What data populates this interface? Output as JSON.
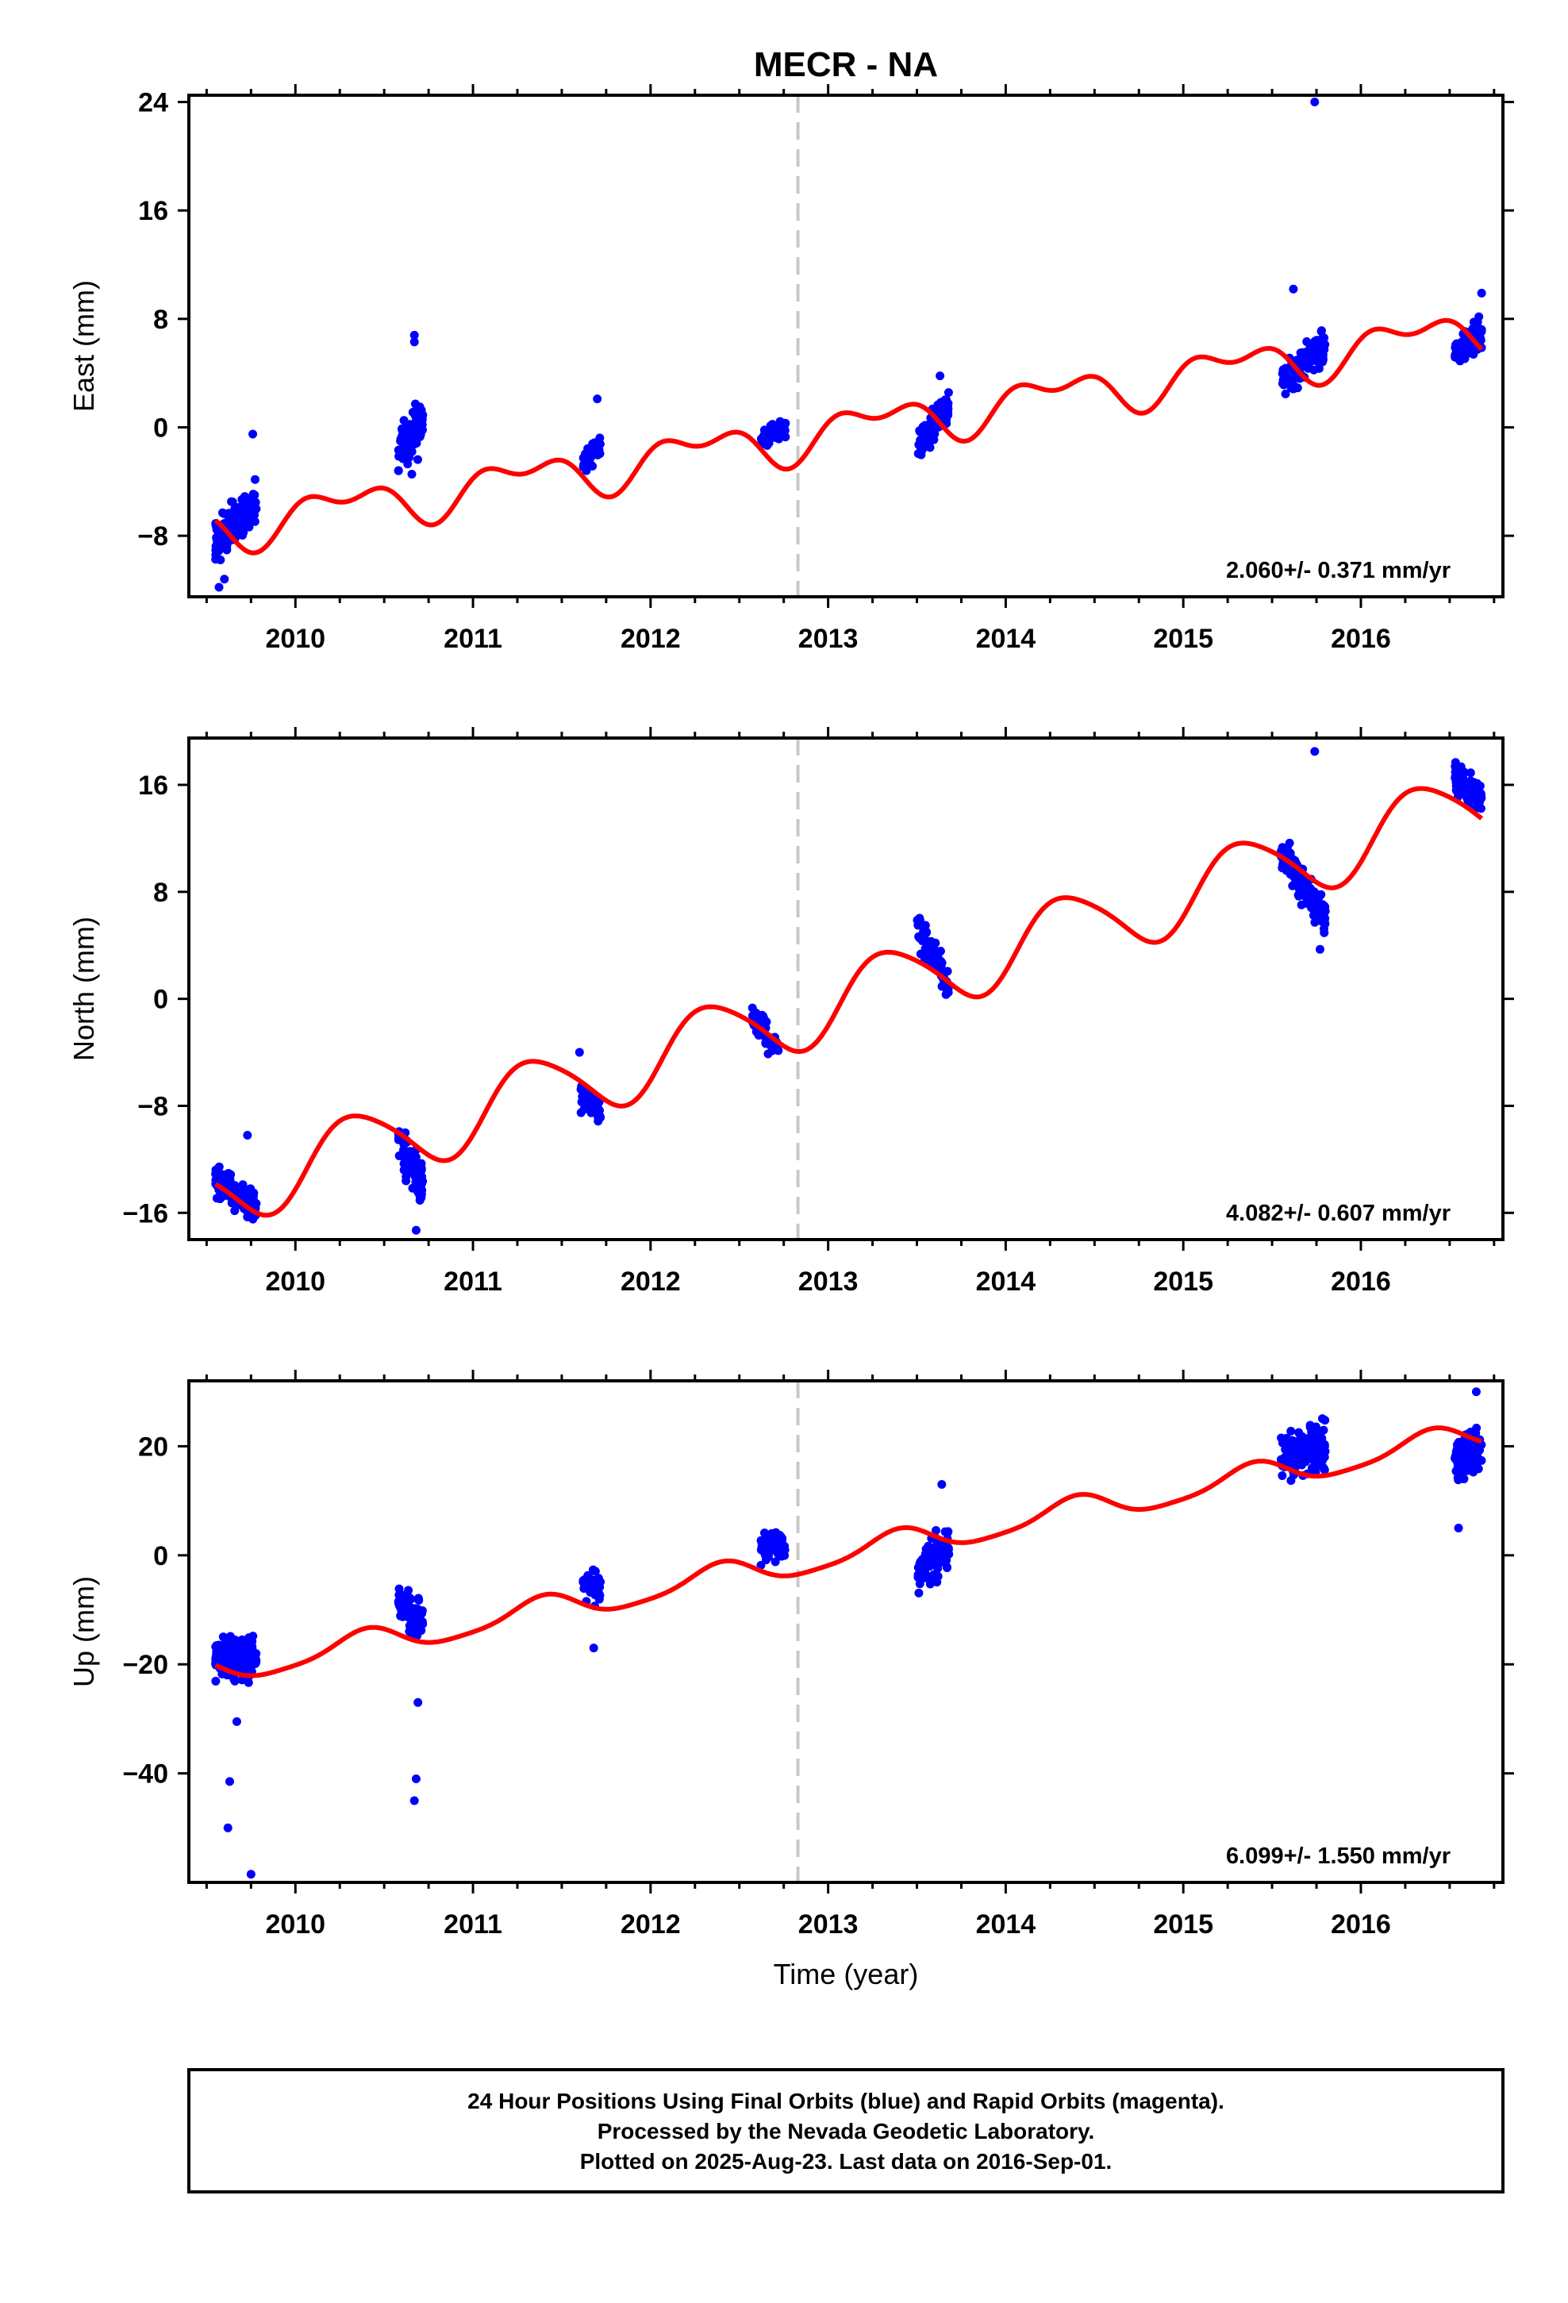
{
  "title": "MECR - NA",
  "chart_data": [
    {
      "type": "scatter",
      "ylabel": "East (mm)",
      "xlabel": "",
      "xlim": [
        2009.4,
        2016.8
      ],
      "ylim": [
        -12.5,
        24.5
      ],
      "yticks": [
        24,
        16,
        8,
        0,
        -8
      ],
      "ytick_labels": [
        "24",
        "16",
        "8",
        "0",
        "-8"
      ],
      "xticks": [
        2010,
        2011,
        2012,
        2013,
        2014,
        2015,
        2016
      ],
      "xtick_labels": [
        "2010",
        "2011",
        "2012",
        "2013",
        "2014",
        "2015",
        "2016"
      ],
      "rate_label": "2.060+/- 0.371 mm/yr",
      "event_line_x": 2012.83,
      "series": [
        {
          "kind": "points",
          "color": "#0000ff",
          "clusters": [
            {
              "x_start": 2009.55,
              "x_end": 2009.78,
              "y_start": -8.5,
              "y_end": -5.5,
              "spread": 1.6,
              "n": 150
            },
            {
              "x_start": 2010.58,
              "x_end": 2010.72,
              "y_start": -1.5,
              "y_end": 0.5,
              "spread": 2.0,
              "n": 75
            },
            {
              "x_start": 2011.62,
              "x_end": 2011.72,
              "y_start": -2.5,
              "y_end": -1.5,
              "spread": 1.0,
              "n": 45
            },
            {
              "x_start": 2012.62,
              "x_end": 2012.76,
              "y_start": -0.8,
              "y_end": 0.0,
              "spread": 0.8,
              "n": 55
            },
            {
              "x_start": 2013.5,
              "x_end": 2013.68,
              "y_start": -1.5,
              "y_end": 1.5,
              "spread": 1.2,
              "n": 85
            },
            {
              "x_start": 2015.55,
              "x_end": 2015.8,
              "y_start": 3.5,
              "y_end": 6.0,
              "spread": 1.2,
              "n": 150
            },
            {
              "x_start": 2016.53,
              "x_end": 2016.68,
              "y_start": 5.5,
              "y_end": 7.0,
              "spread": 1.0,
              "n": 100
            }
          ],
          "outliers": [
            [
              2015.74,
              24.0
            ],
            [
              2015.62,
              10.2
            ],
            [
              2010.67,
              6.8
            ],
            [
              2010.67,
              6.3
            ],
            [
              2009.57,
              -11.8
            ],
            [
              2009.6,
              -11.2
            ],
            [
              2009.76,
              -0.5
            ],
            [
              2011.7,
              2.1
            ],
            [
              2013.63,
              3.8
            ],
            [
              2016.68,
              9.9
            ]
          ]
        },
        {
          "kind": "fit",
          "color": "#ff0000",
          "ref_year": 2012.83,
          "offset": -0.7,
          "rate": 2.06,
          "annual_sin": 1.35,
          "annual_cos": -0.15,
          "semiannual_sin": 0.3,
          "semiannual_cos": 0.85
        }
      ]
    },
    {
      "type": "scatter",
      "ylabel": "North (mm)",
      "xlabel": "",
      "xlim": [
        2009.4,
        2016.8
      ],
      "ylim": [
        -18,
        19.5
      ],
      "yticks": [
        16,
        8,
        0,
        -8,
        -16
      ],
      "ytick_labels": [
        "16",
        "8",
        "0",
        "-8",
        "-16"
      ],
      "xticks": [
        2010,
        2011,
        2012,
        2013,
        2014,
        2015,
        2016
      ],
      "xtick_labels": [
        "2010",
        "2011",
        "2012",
        "2013",
        "2014",
        "2015",
        "2016"
      ],
      "rate_label": "4.082+/- 0.607 mm/yr",
      "event_line_x": 2012.83,
      "series": [
        {
          "kind": "points",
          "color": "#0000ff",
          "clusters": [
            {
              "x_start": 2009.55,
              "x_end": 2009.78,
              "y_start": -13.5,
              "y_end": -15.5,
              "spread": 1.2,
              "n": 150
            },
            {
              "x_start": 2010.58,
              "x_end": 2010.72,
              "y_start": -10.5,
              "y_end": -14.0,
              "spread": 1.6,
              "n": 75
            },
            {
              "x_start": 2011.6,
              "x_end": 2011.72,
              "y_start": -7.0,
              "y_end": -8.5,
              "spread": 1.1,
              "n": 45
            },
            {
              "x_start": 2012.57,
              "x_end": 2012.72,
              "y_start": -1.0,
              "y_end": -3.5,
              "spread": 1.0,
              "n": 55
            },
            {
              "x_start": 2013.5,
              "x_end": 2013.68,
              "y_start": 5.5,
              "y_end": 1.0,
              "spread": 1.2,
              "n": 85
            },
            {
              "x_start": 2015.55,
              "x_end": 2015.8,
              "y_start": 11.0,
              "y_end": 6.0,
              "spread": 1.3,
              "n": 150
            },
            {
              "x_start": 2016.53,
              "x_end": 2016.68,
              "y_start": 16.5,
              "y_end": 15.0,
              "spread": 1.1,
              "n": 100
            }
          ],
          "outliers": [
            [
              2015.74,
              18.5
            ],
            [
              2009.73,
              -10.2
            ],
            [
              2011.6,
              -4.0
            ],
            [
              2010.68,
              -17.3
            ],
            [
              2015.77,
              3.7
            ]
          ]
        },
        {
          "kind": "fit",
          "color": "#ff0000",
          "ref_year": 2012.83,
          "offset": -1.1,
          "rate": 4.08,
          "annual_sin": 2.3,
          "annual_cos": -1.4,
          "semiannual_sin": 0.3,
          "semiannual_cos": -0.2
        }
      ]
    },
    {
      "type": "scatter",
      "ylabel": "Up (mm)",
      "xlabel": "Time (year)",
      "xlim": [
        2009.4,
        2016.8
      ],
      "ylim": [
        -60,
        32
      ],
      "yticks": [
        20,
        0,
        -20,
        -40
      ],
      "ytick_labels": [
        "20",
        "0",
        "-20",
        "-40"
      ],
      "xticks": [
        2010,
        2011,
        2012,
        2013,
        2014,
        2015,
        2016
      ],
      "xtick_labels": [
        "2010",
        "2011",
        "2012",
        "2013",
        "2014",
        "2015",
        "2016"
      ],
      "rate_label": "6.099+/- 1.550 mm/yr",
      "event_line_x": 2012.83,
      "series": [
        {
          "kind": "points",
          "color": "#0000ff",
          "clusters": [
            {
              "x_start": 2009.55,
              "x_end": 2009.78,
              "y_start": -19.0,
              "y_end": -18.0,
              "spread": 4.0,
              "n": 150
            },
            {
              "x_start": 2010.58,
              "x_end": 2010.72,
              "y_start": -9.0,
              "y_end": -12.0,
              "spread": 3.5,
              "n": 75
            },
            {
              "x_start": 2011.62,
              "x_end": 2011.72,
              "y_start": -5.0,
              "y_end": -6.0,
              "spread": 3.0,
              "n": 45
            },
            {
              "x_start": 2012.62,
              "x_end": 2012.76,
              "y_start": 2.0,
              "y_end": 2.0,
              "spread": 3.0,
              "n": 55
            },
            {
              "x_start": 2013.5,
              "x_end": 2013.68,
              "y_start": -3.0,
              "y_end": 2.0,
              "spread": 4.0,
              "n": 85
            },
            {
              "x_start": 2015.55,
              "x_end": 2015.8,
              "y_start": 18.0,
              "y_end": 20.0,
              "spread": 4.0,
              "n": 150
            },
            {
              "x_start": 2016.53,
              "x_end": 2016.68,
              "y_start": 18.0,
              "y_end": 20.0,
              "spread": 4.0,
              "n": 100
            }
          ],
          "outliers": [
            [
              2009.63,
              -41.5
            ],
            [
              2009.62,
              -50.0
            ],
            [
              2009.75,
              -58.5
            ],
            [
              2009.67,
              -30.5
            ],
            [
              2010.68,
              -41.0
            ],
            [
              2010.67,
              -45.0
            ],
            [
              2010.69,
              -27.0
            ],
            [
              2011.68,
              -17.0
            ],
            [
              2016.65,
              30.0
            ],
            [
              2016.55,
              5.0
            ],
            [
              2013.64,
              13.0
            ]
          ]
        },
        {
          "kind": "fit",
          "color": "#ff0000",
          "ref_year": 2012.83,
          "offset": -1.4,
          "rate": 6.1,
          "annual_sin": 1.6,
          "annual_cos": -1.8,
          "semiannual_sin": -0.4,
          "semiannual_cos": 0.3
        }
      ]
    }
  ],
  "caption": {
    "line1": "24 Hour Positions Using Final Orbits (blue) and Rapid Orbits (magenta).",
    "line2": "Processed by the Nevada Geodetic Laboratory.",
    "line3": "Plotted on 2025-Aug-23. Last data on 2016-Sep-01."
  }
}
